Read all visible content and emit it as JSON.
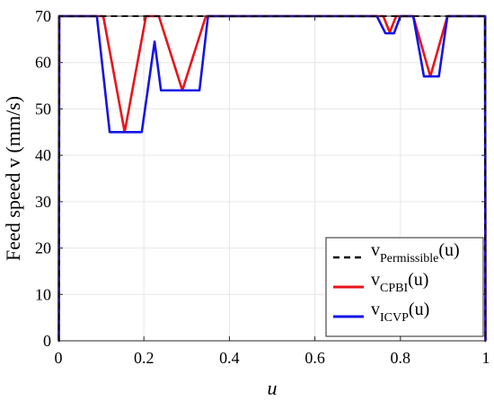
{
  "chart_data": {
    "type": "line",
    "xlabel": "u",
    "ylabel": "Feed speed v (mm/s)",
    "xlim": [
      0,
      1
    ],
    "ylim": [
      0,
      70
    ],
    "x_ticks": [
      "0",
      "0.2",
      "0.4",
      "0.6",
      "0.8",
      "1"
    ],
    "y_ticks": [
      "0",
      "10",
      "20",
      "30",
      "40",
      "50",
      "60",
      "70"
    ],
    "grid": true,
    "legend_position": "bottom-right",
    "series": [
      {
        "name": "v",
        "name_sub": "Permissible",
        "name_suffix": "(u)",
        "color": "#000000",
        "dash": "dashed",
        "x": [
          0,
          0.001,
          0.002,
          0.998,
          0.999,
          1
        ],
        "y": [
          0,
          0,
          70,
          70,
          0,
          0
        ]
      },
      {
        "name": "v",
        "name_sub": "CPBI",
        "name_suffix": "(u)",
        "color": "#e8141b",
        "dash": "solid",
        "x": [
          0,
          0.001,
          0.002,
          0.105,
          0.155,
          0.205,
          0.22,
          0.235,
          0.29,
          0.345,
          0.745,
          0.76,
          0.775,
          0.79,
          0.83,
          0.87,
          0.91,
          0.998,
          0.999,
          1
        ],
        "y": [
          0,
          0,
          70,
          70,
          45,
          70,
          70,
          70,
          54,
          70,
          70,
          70,
          66.5,
          70,
          70,
          57,
          70,
          70,
          0,
          0
        ]
      },
      {
        "name": "v",
        "name_sub": "ICVP",
        "name_suffix": "(u)",
        "color": "#1414e6",
        "dash": "solid",
        "x": [
          0,
          0.001,
          0.002,
          0.09,
          0.12,
          0.195,
          0.225,
          0.24,
          0.33,
          0.35,
          0.745,
          0.765,
          0.785,
          0.8,
          0.83,
          0.855,
          0.89,
          0.91,
          0.998,
          0.999,
          1
        ],
        "y": [
          0,
          0,
          70,
          70,
          45,
          45,
          64.5,
          54,
          54,
          70,
          70,
          66.3,
          66.3,
          70,
          70,
          57,
          57,
          70,
          70,
          0,
          0
        ]
      }
    ]
  }
}
